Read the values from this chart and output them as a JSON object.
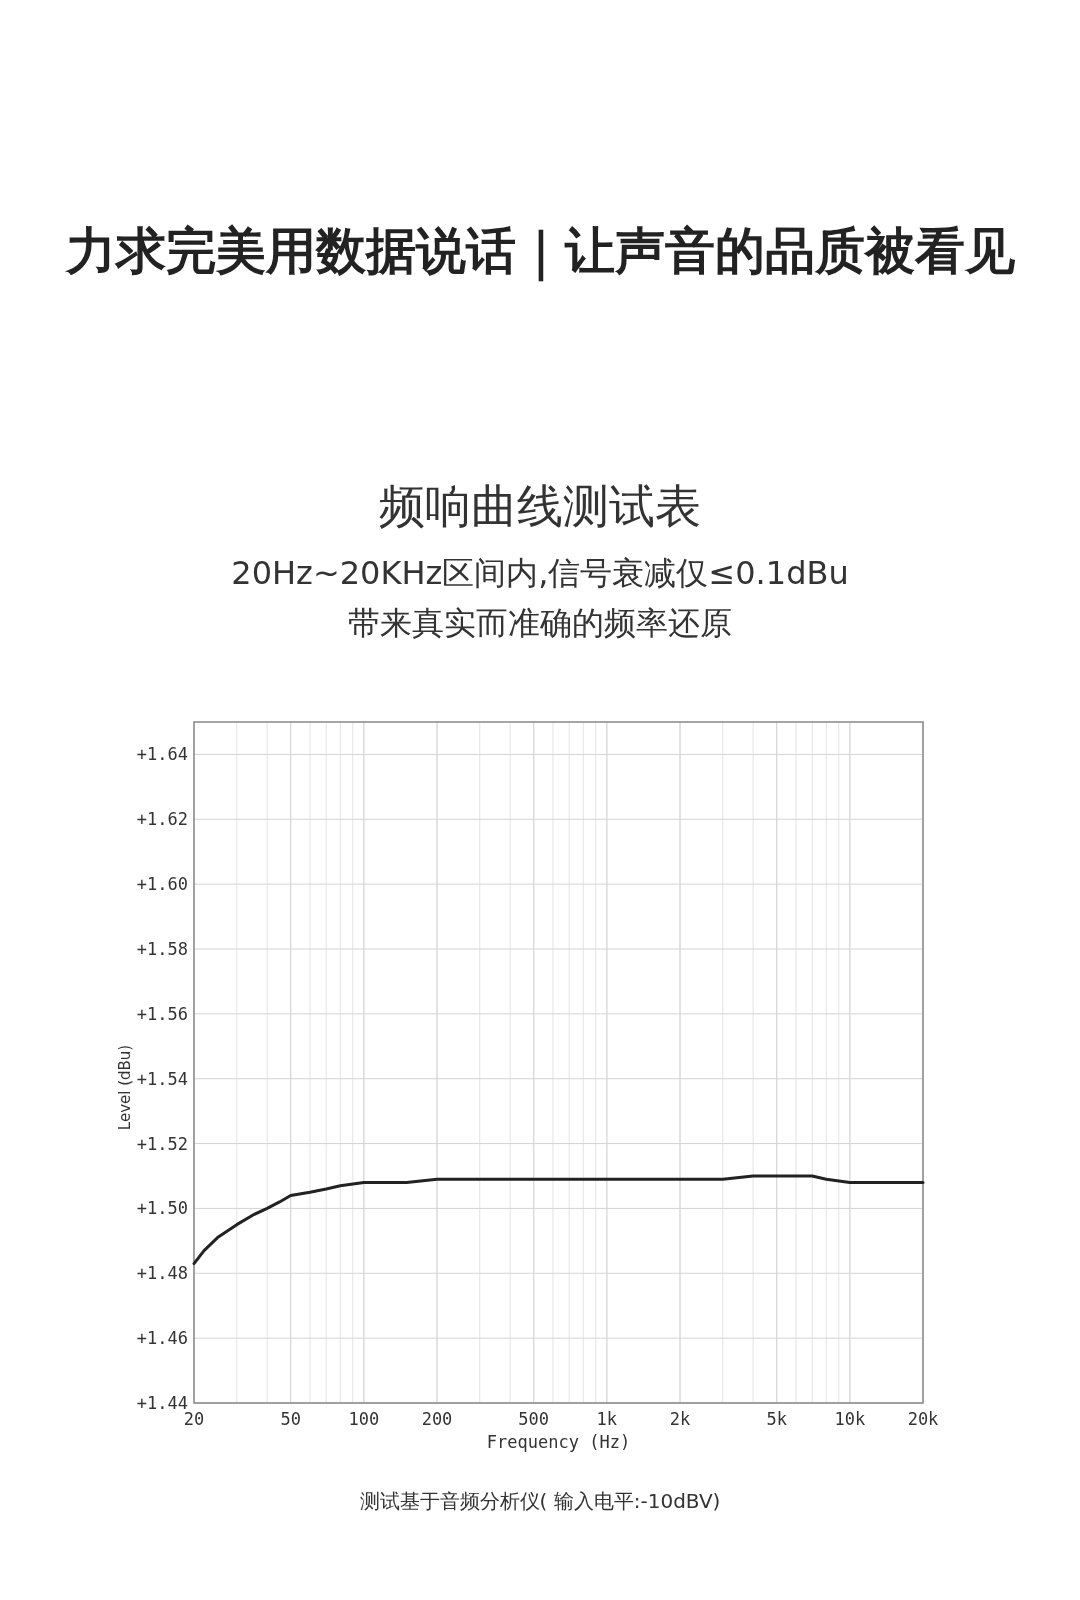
{
  "chart_data": {
    "type": "line",
    "title": "力求完美用数据说话｜让声音的品质被看见",
    "subtitle": "频响曲线测试表",
    "annotations": [
      "20Hz~20KHz区间内,信号衰减仅≤0.1dBu",
      "带来真实而准确的频率还原",
      "测试基于音频分析仪( 输入电平:-10dBV)"
    ],
    "xlabel": "Frequency (Hz)",
    "ylabel": "Level (dBu)",
    "log": "x",
    "grid": true,
    "xlim": [
      20,
      20000
    ],
    "ylim": [
      1.44,
      1.65
    ],
    "xticks": [
      20,
      50,
      100,
      200,
      500,
      {
        "value": 1000,
        "label": "1k"
      },
      {
        "value": 2000,
        "label": "2k"
      },
      {
        "value": 5000,
        "label": "5k"
      },
      {
        "value": 10000,
        "label": "10k"
      },
      {
        "value": 20000,
        "label": "20k"
      }
    ],
    "yticks": [
      {
        "value": 1.44,
        "label": "+1.44"
      },
      {
        "value": 1.46,
        "label": "+1.46"
      },
      {
        "value": 1.48,
        "label": "+1.48"
      },
      {
        "value": 1.5,
        "label": "+1.50"
      },
      {
        "value": 1.52,
        "label": "+1.52"
      },
      {
        "value": 1.54,
        "label": "+1.54"
      },
      {
        "value": 1.56,
        "label": "+1.56"
      },
      {
        "value": 1.58,
        "label": "+1.58"
      },
      {
        "value": 1.6,
        "label": "+1.60"
      },
      {
        "value": 1.62,
        "label": "+1.62"
      },
      {
        "value": 1.64,
        "label": "+1.64"
      }
    ],
    "series": [
      {
        "color": "#222222",
        "x": [
          20,
          22,
          25,
          30,
          35,
          40,
          45,
          50,
          60,
          70,
          80,
          100,
          120,
          150,
          200,
          300,
          500,
          1000,
          1400,
          2000,
          2600,
          3000,
          4000,
          5000,
          6000,
          7000,
          8000,
          10000,
          12000,
          14000,
          16000,
          18000,
          20000
        ],
        "values": [
          1.483,
          1.487,
          1.491,
          1.495,
          1.498,
          1.5,
          1.502,
          1.504,
          1.505,
          1.506,
          1.507,
          1.508,
          1.508,
          1.508,
          1.509,
          1.509,
          1.509,
          1.509,
          1.509,
          1.509,
          1.509,
          1.509,
          1.51,
          1.51,
          1.51,
          1.51,
          1.509,
          1.508,
          1.508,
          1.508,
          1.508,
          1.508,
          1.508
        ]
      }
    ]
  }
}
